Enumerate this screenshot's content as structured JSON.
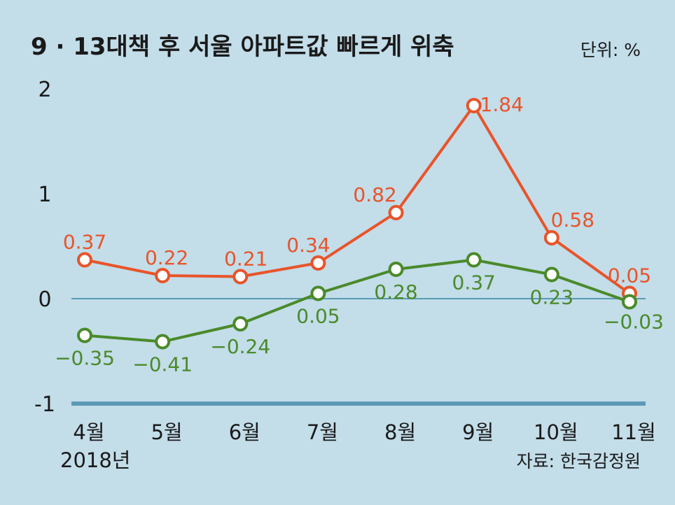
{
  "title": "9 · 13대책 후 서울 아파트값 빠르게 위축",
  "unit": "단위: %",
  "source": "자료: 한국감정원",
  "year_label": "2018년",
  "chart_data": {
    "type": "line",
    "categories": [
      "4월",
      "5월",
      "6월",
      "7월",
      "8월",
      "9월",
      "10월",
      "11월"
    ],
    "series": [
      {
        "name": "",
        "color": "#e8542a",
        "values": [
          0.37,
          0.22,
          0.21,
          0.34,
          0.82,
          1.84,
          0.58,
          0.05
        ],
        "labels": [
          "0.37",
          "0.22",
          "0.21",
          "0.34",
          "0.82",
          "1.84",
          "0.58",
          "0.05"
        ]
      },
      {
        "name": "",
        "color": "#4a8a2a",
        "values": [
          -0.35,
          -0.41,
          -0.24,
          0.05,
          0.28,
          0.37,
          0.23,
          -0.03
        ],
        "labels": [
          "−0.35",
          "−0.41",
          "−0.24",
          "0.05",
          "0.28",
          "0.37",
          "0.23",
          "−0.03"
        ]
      }
    ],
    "yticks": [
      "2",
      "1",
      "0",
      "-1"
    ],
    "ylim": [
      -1,
      2
    ],
    "grid": false,
    "colors": {
      "background": "#c3dde9",
      "zero_line": "#5b9ab4",
      "baseline": "#5b9ab4"
    }
  }
}
